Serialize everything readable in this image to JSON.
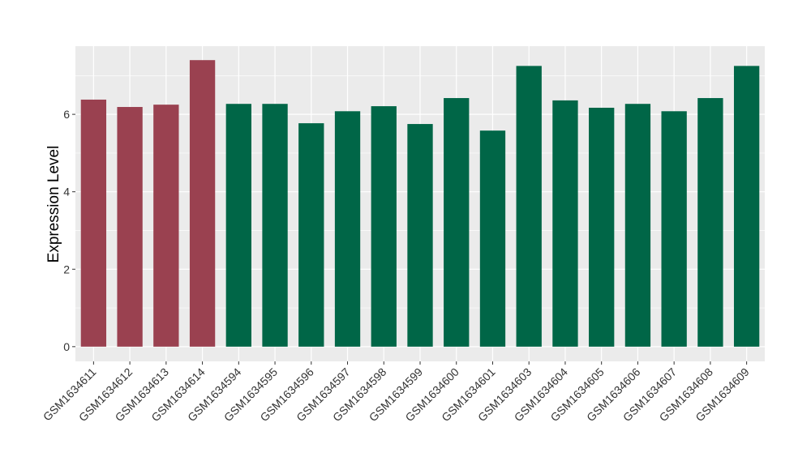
{
  "chart_data": {
    "type": "bar",
    "title": "",
    "xlabel": "",
    "ylabel": "Expression Level",
    "ylim": [
      -0.38,
      7.76
    ],
    "yticks": [
      0,
      2,
      4,
      6
    ],
    "grid": true,
    "legend": "none",
    "categories": [
      "GSM1634611",
      "GSM1634612",
      "GSM1634613",
      "GSM1634614",
      "GSM1634594",
      "GSM1634595",
      "GSM1634596",
      "GSM1634597",
      "GSM1634598",
      "GSM1634599",
      "GSM1634600",
      "GSM1634601",
      "GSM1634603",
      "GSM1634604",
      "GSM1634605",
      "GSM1634606",
      "GSM1634607",
      "GSM1634608",
      "GSM1634609"
    ],
    "values": [
      6.38,
      6.19,
      6.25,
      7.4,
      6.27,
      6.27,
      5.77,
      6.08,
      6.21,
      5.75,
      6.42,
      5.58,
      7.25,
      6.36,
      6.17,
      6.27,
      6.08,
      6.42,
      7.25
    ],
    "groups": [
      "a",
      "a",
      "a",
      "a",
      "b",
      "b",
      "b",
      "b",
      "b",
      "b",
      "b",
      "b",
      "b",
      "b",
      "b",
      "b",
      "b",
      "b",
      "b"
    ],
    "colors": {
      "a": "#9a4150",
      "b": "#006647"
    },
    "panel_background": "#ebebeb"
  }
}
